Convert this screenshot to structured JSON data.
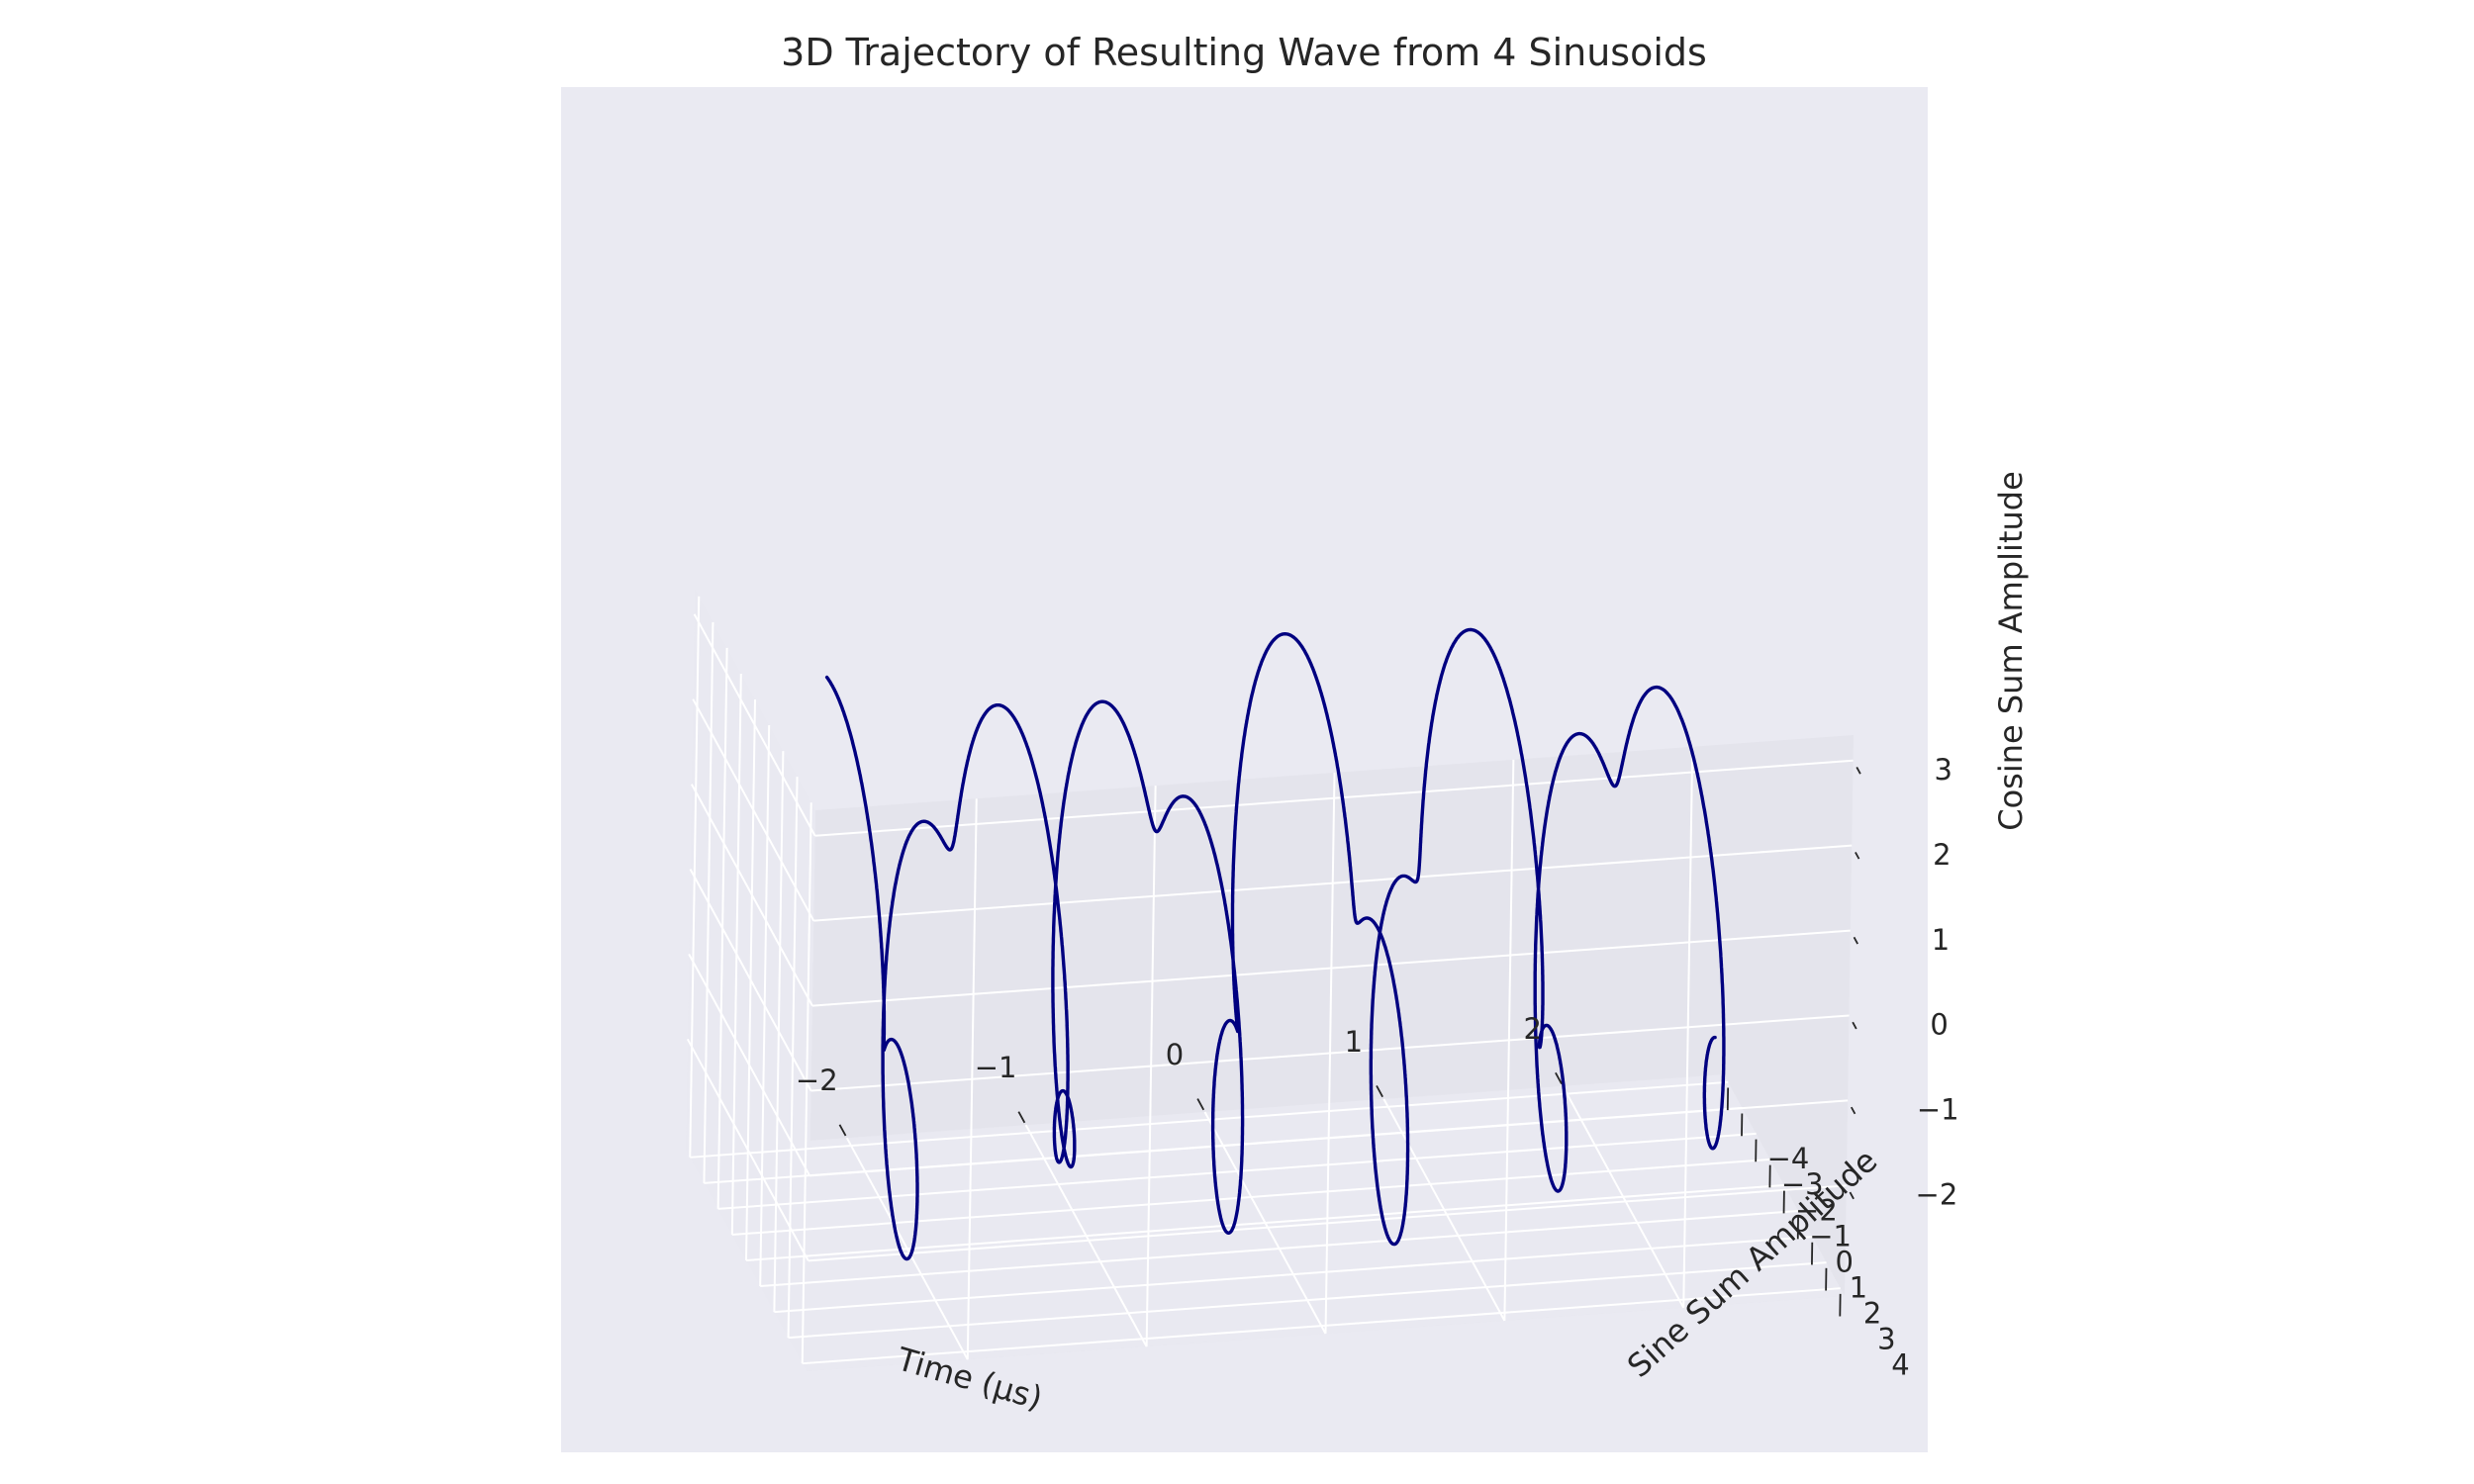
{
  "chart_data": {
    "type": "line",
    "projection": "3d",
    "title": "3D Trajectory of Resulting Wave from 4 Sinusoids",
    "xlabel": "Time (μs)",
    "ylabel": "Sine Sum Amplitude",
    "zlabel": "Cosine Sum Amplitude",
    "xlim": [
      -2.9,
      2.9
    ],
    "ylim": [
      -4.3,
      4.3
    ],
    "zlim": [
      -3.3,
      3.3
    ],
    "x_ticks": [
      2,
      1,
      0,
      -1,
      -2
    ],
    "x_tick_labels": [
      "2",
      "1",
      "0",
      "−1",
      "−2"
    ],
    "y_ticks": [
      -4,
      -3,
      -2,
      -1,
      0,
      1,
      2,
      3,
      4
    ],
    "y_tick_labels": [
      "−4",
      "−3",
      "−2",
      "−1",
      "0",
      "1",
      "2",
      "3",
      "4"
    ],
    "z_ticks": [
      3,
      2,
      1,
      0,
      -1,
      -2
    ],
    "z_tick_labels": [
      "3",
      "2",
      "1",
      "0",
      "−1",
      "−2"
    ],
    "grid": true,
    "series": [
      {
        "color": "#000080",
        "t_range": [
          -2.5,
          2.5
        ],
        "components": [
          {
            "amplitude": 2.5,
            "cycles_over_range": 5.5
          },
          {
            "amplitude": 1.0,
            "cycles_over_range": 15
          }
        ]
      }
    ],
    "colors": {
      "pane_face": "#e9e9f1",
      "pane_back": "#e4e4ec",
      "outer_bg": "#eaeaf2",
      "grid": "#ffffff",
      "line": "#000080",
      "text": "#262626"
    }
  }
}
